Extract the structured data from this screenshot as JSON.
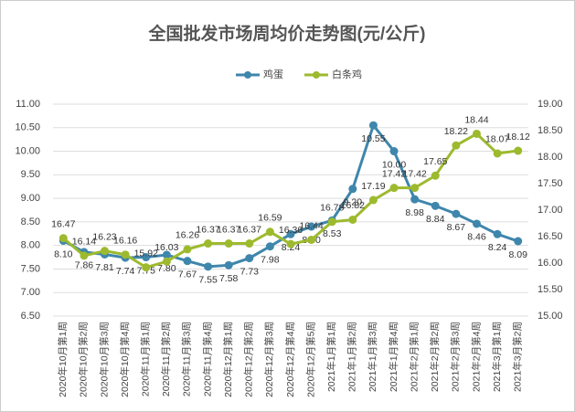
{
  "chart_data": {
    "type": "line",
    "title": "全国批发市场周均价走势图(元/公斤)",
    "categories": [
      "2020年10月第1周",
      "2020年10月第2周",
      "2020年10月第3周",
      "2020年10月第4周",
      "2020年11月第1周",
      "2020年11月第2周",
      "2020年11月第3周",
      "2020年11月第4周",
      "2020年12月第1周",
      "2020年12月第2周",
      "2020年12月第3周",
      "2020年12月第4周",
      "2020年12月第5周",
      "2021年1月第1周",
      "2021年1月第2周",
      "2021年1月第3周",
      "2021年1月第4周",
      "2021年2月第1周",
      "2021年2月第2周",
      "2021年2月第3周",
      "2021年2月第4周",
      "2021年3月第1周",
      "2021年3月第2周"
    ],
    "series": [
      {
        "name": "鸡蛋",
        "color": "#3f86ac",
        "axis": "y",
        "values": [
          8.1,
          7.86,
          7.81,
          7.74,
          7.75,
          7.8,
          7.67,
          7.55,
          7.58,
          7.73,
          7.98,
          8.24,
          8.4,
          8.53,
          9.2,
          10.55,
          10.0,
          8.98,
          8.84,
          8.67,
          8.46,
          8.24,
          8.09
        ],
        "value_labels": [
          "8.10",
          "7.86",
          "7.81",
          "7.74",
          "7.75",
          "7.80",
          "7.67",
          "7.55",
          "7.58",
          "7.73",
          "7.98",
          "8.24",
          "8.40",
          "8.53",
          "9.20",
          "10.55",
          "10.00",
          "8.98",
          "8.84",
          "8.67",
          "8.46",
          "8.24",
          "8.09"
        ]
      },
      {
        "name": "白条鸡",
        "color": "#9dba2e",
        "axis": "y2",
        "values": [
          16.47,
          16.14,
          16.23,
          16.16,
          15.92,
          16.03,
          16.26,
          16.37,
          16.37,
          16.37,
          16.59,
          16.36,
          16.44,
          16.78,
          16.82,
          17.19,
          17.42,
          17.42,
          17.65,
          18.22,
          18.44,
          18.07,
          18.12
        ],
        "value_labels": [
          "16.47",
          "16.14",
          "16.23",
          "16.16",
          "15.92",
          "16.03",
          "16.26",
          "16.37",
          "16.37",
          "16.37",
          "16.59",
          "16.36",
          "16.44",
          "16.78",
          "16.82",
          "17.19",
          "17.42",
          "17.42",
          "17.65",
          "18.22",
          "18.44",
          "18.07",
          "18.12"
        ]
      }
    ],
    "ylim": [
      6.5,
      11
    ],
    "yticks": [
      {
        "value": 6.5,
        "label": "6.50"
      },
      {
        "value": 7,
        "label": "7.00"
      },
      {
        "value": 7.5,
        "label": "7.50"
      },
      {
        "value": 8,
        "label": "8.00"
      },
      {
        "value": 8.5,
        "label": "8.50"
      },
      {
        "value": 9,
        "label": "9.00"
      },
      {
        "value": 9.5,
        "label": "9.50"
      },
      {
        "value": 10,
        "label": "10.00"
      },
      {
        "value": 10.5,
        "label": "10.50"
      },
      {
        "value": 11,
        "label": "11.00"
      }
    ],
    "y2lim": [
      15,
      19
    ],
    "y2ticks": [
      {
        "value": 15,
        "label": "15.00"
      },
      {
        "value": 15.5,
        "label": "15.50"
      },
      {
        "value": 16,
        "label": "16.00"
      },
      {
        "value": 16.5,
        "label": "16.50"
      },
      {
        "value": 17,
        "label": "17.00"
      },
      {
        "value": 17.5,
        "label": "17.50"
      },
      {
        "value": 18,
        "label": "18.00"
      },
      {
        "value": 18.5,
        "label": "18.50"
      },
      {
        "value": 19,
        "label": "19.00"
      }
    ],
    "grid": true,
    "legend": "top"
  }
}
